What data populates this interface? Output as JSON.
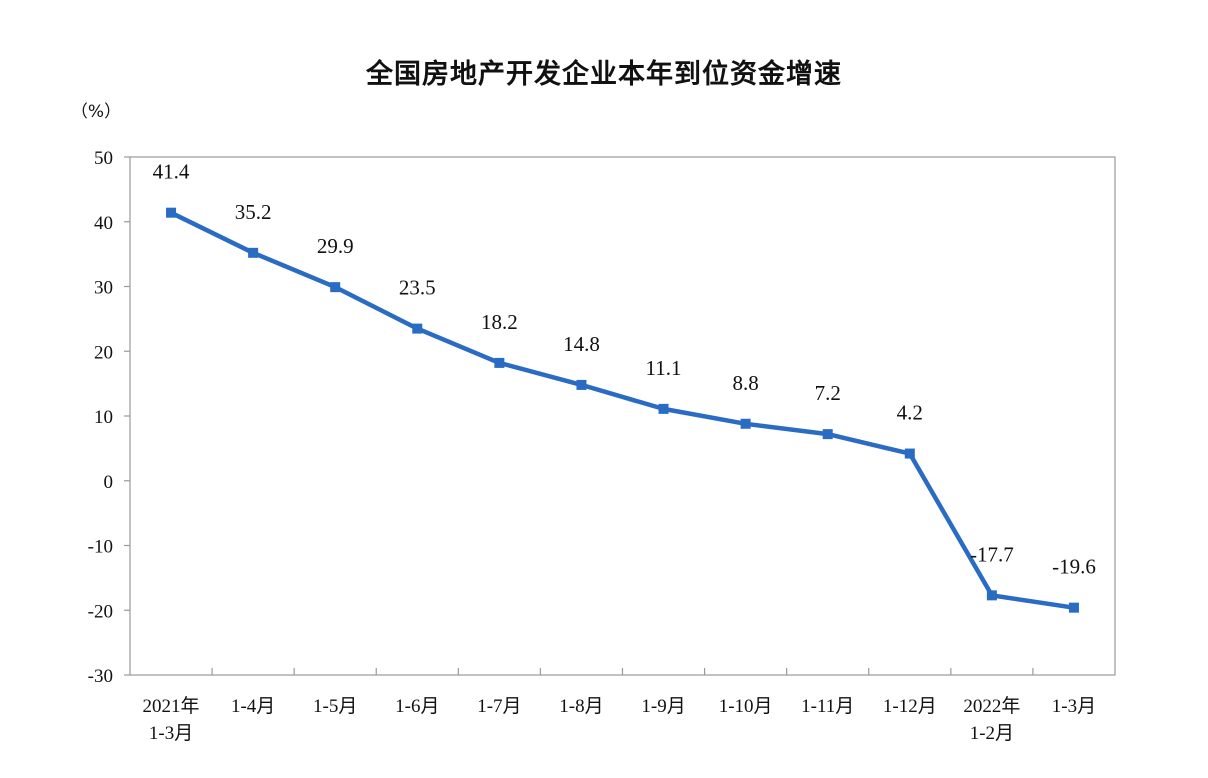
{
  "chart_data": {
    "type": "line",
    "title": "全国房地产开发企业本年到位资金增速",
    "unit": "（%）",
    "categories": [
      [
        "2021年",
        "1-3月"
      ],
      [
        "1-4月"
      ],
      [
        "1-5月"
      ],
      [
        "1-6月"
      ],
      [
        "1-7月"
      ],
      [
        "1-8月"
      ],
      [
        "1-9月"
      ],
      [
        "1-10月"
      ],
      [
        "1-11月"
      ],
      [
        "1-12月"
      ],
      [
        "2022年",
        "1-2月"
      ],
      [
        "1-3月"
      ]
    ],
    "values": [
      41.4,
      35.2,
      29.9,
      23.5,
      18.2,
      14.8,
      11.1,
      8.8,
      7.2,
      4.2,
      -17.7,
      -19.6
    ],
    "data_labels": [
      "41.4",
      "35.2",
      "29.9",
      "23.5",
      "18.2",
      "14.8",
      "11.1",
      "8.8",
      "7.2",
      "4.2",
      "-17.7",
      "-19.6"
    ],
    "ylim": [
      -30,
      50
    ],
    "yticks": [
      50,
      40,
      30,
      20,
      10,
      0,
      -10,
      -20,
      -30
    ],
    "grid": false,
    "line_color": "#2a6bc4"
  }
}
